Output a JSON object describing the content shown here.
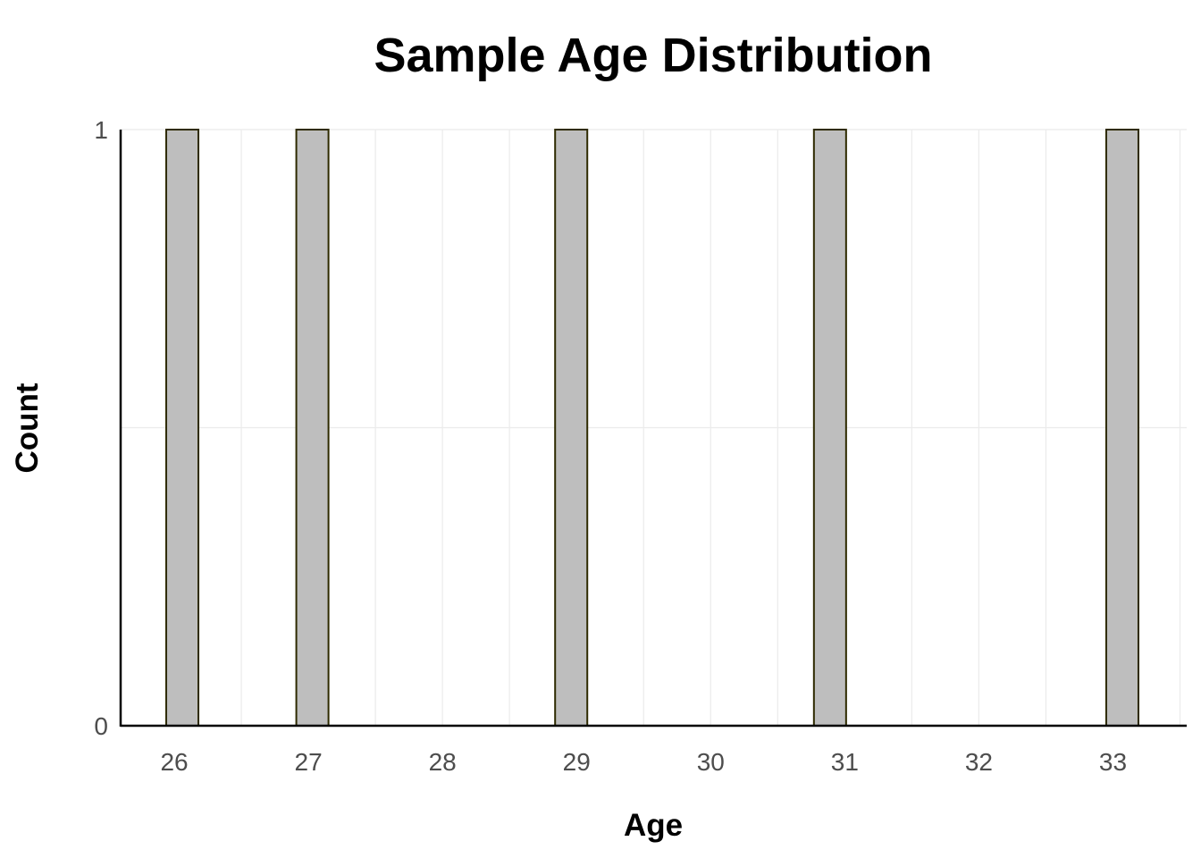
{
  "chart_data": {
    "type": "bar",
    "title": "Sample Age Distribution",
    "xlabel": "Age",
    "ylabel": "Count",
    "x_ticks": [
      26,
      27,
      28,
      29,
      30,
      31,
      32,
      33
    ],
    "y_ticks": [
      0,
      1
    ],
    "xlim": [
      25.6,
      33.55
    ],
    "ylim": [
      0,
      1
    ],
    "bin_width": 0.24,
    "bars": [
      {
        "x": 26.06,
        "count": 1
      },
      {
        "x": 27.03,
        "count": 1
      },
      {
        "x": 28.96,
        "count": 1
      },
      {
        "x": 30.89,
        "count": 1
      },
      {
        "x": 33.07,
        "count": 1
      }
    ],
    "grid": true,
    "colors": {
      "bar_fill": "#bebebe",
      "bar_stroke": "#2e2a00",
      "grid": "#ebebeb",
      "axis": "#000000"
    }
  }
}
